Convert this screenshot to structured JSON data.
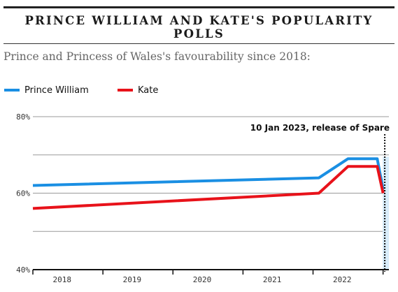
{
  "header": {
    "title": "PRINCE WILLIAM AND KATE'S POPULARITY POLLS",
    "subtitle": "Prince and Princess of Wales's favourability since 2018:"
  },
  "colors": {
    "william": "#1a8fe3",
    "kate": "#e8121a",
    "grid": "#9a9a9a",
    "axis": "#111111",
    "highlight": "#d8ecfa"
  },
  "chart_data": {
    "type": "line",
    "title": "PRINCE WILLIAM AND KATE'S POPULARITY POLLS",
    "subtitle": "Prince and Princess of Wales's favourability since 2018:",
    "xlabel": "",
    "ylabel": "",
    "x_range": [
      "2018-01",
      "2023-02"
    ],
    "ylim": [
      40,
      80
    ],
    "y_ticks": [
      40,
      60,
      80
    ],
    "y_tick_labels": [
      "40%",
      "60%",
      "80%"
    ],
    "x_tick_labels": [
      {
        "label": "2018",
        "x": "2018-06"
      },
      {
        "label": "2019",
        "x": "2019-06"
      },
      {
        "label": "2020",
        "x": "2020-06"
      },
      {
        "label": "2021",
        "x": "2021-06"
      },
      {
        "label": "2022",
        "x": "2022-06"
      }
    ],
    "grid": true,
    "legend_position": "top-left",
    "series": [
      {
        "name": "Prince William",
        "color": "#1a8fe3",
        "points": [
          {
            "x": "2018-01",
            "y": 62
          },
          {
            "x": "2022-02",
            "y": 64
          },
          {
            "x": "2022-07",
            "y": 69
          },
          {
            "x": "2022-12",
            "y": 69
          },
          {
            "x": "2023-01",
            "y": 61
          }
        ]
      },
      {
        "name": "Kate",
        "color": "#e8121a",
        "points": [
          {
            "x": "2018-01",
            "y": 56
          },
          {
            "x": "2022-02",
            "y": 60
          },
          {
            "x": "2022-07",
            "y": 67
          },
          {
            "x": "2022-12",
            "y": 67
          },
          {
            "x": "2023-01",
            "y": 60
          }
        ]
      }
    ],
    "annotations": [
      {
        "text": "10 Jan 2023, release of Spare",
        "x": "2023-01-10"
      }
    ]
  }
}
